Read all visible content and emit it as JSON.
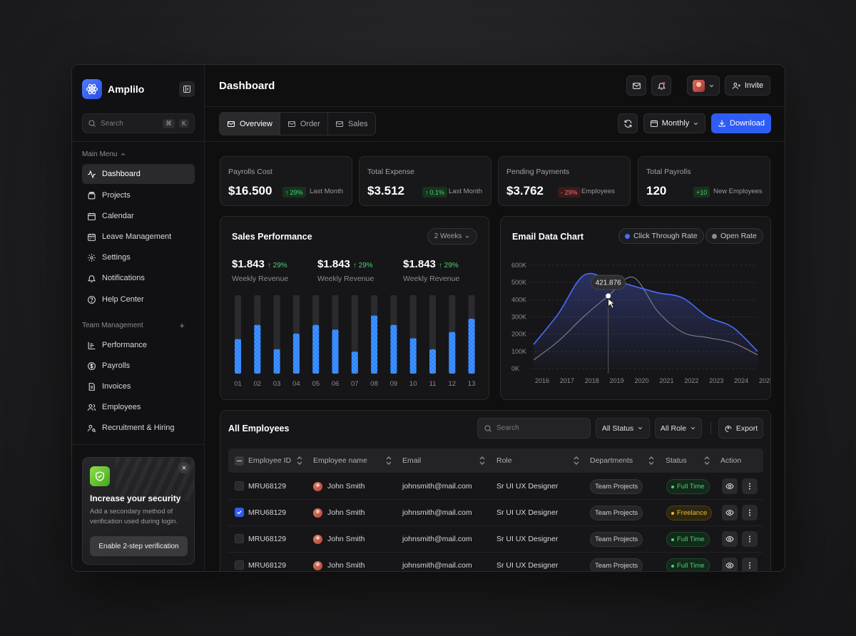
{
  "app": {
    "name": "Amplilo",
    "page_title": "Dashboard"
  },
  "sidebar": {
    "search": {
      "placeholder": "Search",
      "shortcut_1": "⌘",
      "shortcut_2": "K"
    },
    "main_menu_label": "Main Menu",
    "main_items": [
      {
        "label": "Dashboard",
        "icon": "activity-icon",
        "active": true
      },
      {
        "label": "Projects",
        "icon": "folder-icon"
      },
      {
        "label": "Calendar",
        "icon": "calendar-icon"
      },
      {
        "label": "Leave Management",
        "icon": "calendar-check-icon"
      },
      {
        "label": "Settings",
        "icon": "gear-icon"
      },
      {
        "label": "Notifications",
        "icon": "bell-icon"
      },
      {
        "label": "Help Center",
        "icon": "help-icon"
      }
    ],
    "team_label": "Team Management",
    "team_items": [
      {
        "label": "Performance",
        "icon": "chart-icon"
      },
      {
        "label": "Payrolls",
        "icon": "dollar-icon"
      },
      {
        "label": "Invoices",
        "icon": "document-icon"
      },
      {
        "label": "Employees",
        "icon": "users-icon"
      },
      {
        "label": "Recruitment & Hiring",
        "icon": "user-search-icon"
      }
    ],
    "security_card": {
      "title": "Increase your security",
      "description": "Add a secondary method of verification used during login.",
      "button": "Enable 2-step verification"
    }
  },
  "header": {
    "invite_label": "Invite"
  },
  "toolbar": {
    "tabs": [
      {
        "label": "Overview",
        "active": true
      },
      {
        "label": "Order"
      },
      {
        "label": "Sales"
      }
    ],
    "period_label": "Monthly",
    "download_label": "Download"
  },
  "stats": [
    {
      "label": "Payrolls Cost",
      "value": "$16.500",
      "badge": "29%",
      "trend": "up",
      "sub": "Last Month"
    },
    {
      "label": "Total Expense",
      "value": "$3.512",
      "badge": "0.1%",
      "trend": "up",
      "sub": "Last Month"
    },
    {
      "label": "Pending Payments",
      "value": "$3.762",
      "badge": "- 29%",
      "trend": "down",
      "sub": "Employees"
    },
    {
      "label": "Total Payrolls",
      "value": "120",
      "badge": "+10",
      "trend": "up",
      "sub": "New Employees"
    }
  ],
  "sales_performance": {
    "title": "Sales Performance",
    "range_label": "2 Weeks",
    "revenues": [
      {
        "value": "$1.843",
        "change": "29%",
        "label": "Weekly Revenue"
      },
      {
        "value": "$1.843",
        "change": "29%",
        "label": "Weekly Revenue"
      },
      {
        "value": "$1.843",
        "change": "29%",
        "label": "Weekly Revenue"
      }
    ]
  },
  "email_chart": {
    "title": "Email Data Chart",
    "legend": [
      {
        "label": "Click Through Rate",
        "color": "#4b6bff"
      },
      {
        "label": "Open Rate",
        "color": "#8a8a90"
      }
    ],
    "tooltip": "421.876"
  },
  "chart_data": [
    {
      "type": "bar",
      "title": "Sales Performance",
      "categories": [
        "01",
        "02",
        "03",
        "04",
        "05",
        "06",
        "07",
        "08",
        "09",
        "10",
        "11",
        "12",
        "13"
      ],
      "values": [
        44,
        62,
        31,
        51,
        62,
        56,
        28,
        74,
        62,
        45,
        31,
        53,
        70
      ],
      "ylim": [
        0,
        100
      ],
      "color": "#3a6cff"
    },
    {
      "type": "line",
      "title": "Email Data Chart",
      "x": [
        "2016",
        "2017",
        "2018",
        "2019",
        "2020",
        "2021",
        "2022",
        "2023",
        "2024",
        "2025"
      ],
      "y_ticks": [
        "0K",
        "100K",
        "200K",
        "300K",
        "400K",
        "500K",
        "600K"
      ],
      "ylim": [
        0,
        600000
      ],
      "series": [
        {
          "name": "Click Through Rate",
          "values": [
            140000,
            320000,
            540000,
            520000,
            480000,
            440000,
            410000,
            300000,
            240000,
            100000
          ]
        },
        {
          "name": "Open Rate",
          "values": [
            50000,
            160000,
            300000,
            421876,
            530000,
            330000,
            210000,
            180000,
            150000,
            80000
          ]
        }
      ],
      "tooltip_label": "421.876"
    }
  ],
  "employees": {
    "title": "All Employees",
    "search_placeholder": "Search",
    "filter_status": "All Status",
    "filter_role": "All Role",
    "export_label": "Export",
    "columns": [
      "Employee ID",
      "Employee name",
      "Email",
      "Role",
      "Departments",
      "Status",
      "Action"
    ],
    "rows": [
      {
        "id": "MRU68129",
        "name": "John Smith",
        "email": "johnsmith@mail.com",
        "role": "Sr UI UX Designer",
        "dept": "Team Projects",
        "status": "Full Time",
        "checked": false
      },
      {
        "id": "MRU68129",
        "name": "John Smith",
        "email": "johnsmith@mail.com",
        "role": "Sr UI UX Designer",
        "dept": "Team Projects",
        "status": "Freelance",
        "checked": true
      },
      {
        "id": "MRU68129",
        "name": "John Smith",
        "email": "johnsmith@mail.com",
        "role": "Sr UI UX Designer",
        "dept": "Team Projects",
        "status": "Full Time",
        "checked": false
      },
      {
        "id": "MRU68129",
        "name": "John Smith",
        "email": "johnsmith@mail.com",
        "role": "Sr UI UX Designer",
        "dept": "Team Projects",
        "status": "Full Time",
        "checked": false
      }
    ]
  }
}
